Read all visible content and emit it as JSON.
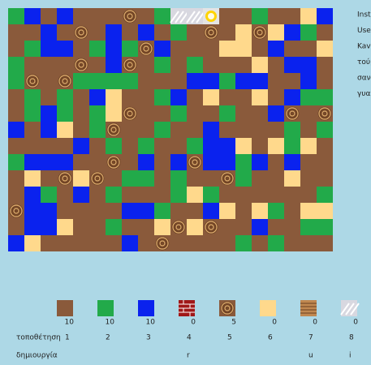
{
  "instructions": [
    "Inst",
    "Use",
    "Kav",
    "τούβ",
    "σαν",
    "γυα"
  ],
  "palette": [
    {
      "count": 10,
      "key": 1,
      "create": null
    },
    {
      "count": 10,
      "key": 2,
      "create": null
    },
    {
      "count": 10,
      "key": 3,
      "create": null
    },
    {
      "count": 0,
      "key": 4,
      "create": "r"
    },
    {
      "count": 5,
      "key": 5,
      "create": null
    },
    {
      "count": 0,
      "key": 6,
      "create": null
    },
    {
      "count": 0,
      "key": 7,
      "create": "u"
    },
    {
      "count": 0,
      "key": 8,
      "create": "i"
    }
  ],
  "row_labels": {
    "place": "τοποθέτηση",
    "create": "δημιουργία"
  }
}
